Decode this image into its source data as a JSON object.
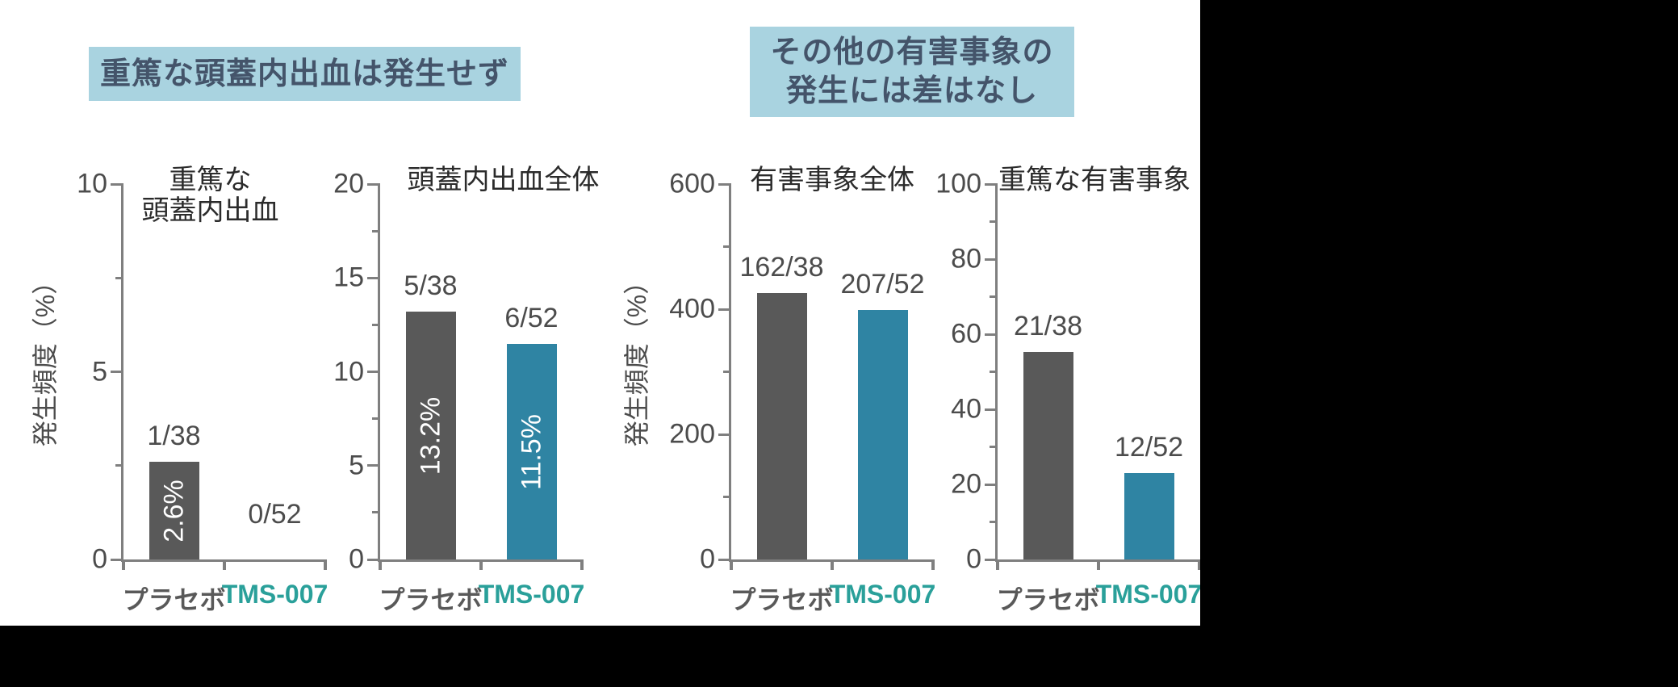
{
  "colors": {
    "background": "#000000",
    "content_bg": "#ffffff",
    "banner_bg": "#a9d3e0",
    "banner_text": "#44546a",
    "axis": "#7f7f7f",
    "tick_text": "#4c4c4c",
    "count_text": "#4c4c4c",
    "title_text": "#2b2b2b",
    "bar_placebo": "#595959",
    "bar_treatment": "#2f84a3",
    "placebo_label": "#595959",
    "tms_label": "#2aa09a",
    "inside_label_text": "#ffffff"
  },
  "banners": [
    {
      "lines": [
        "重篤な頭蓋内出血は発生せず"
      ]
    },
    {
      "lines": [
        "その他の有害事象の",
        "発生には差はなし"
      ]
    }
  ],
  "chart_data": [
    {
      "type": "bar",
      "title_lines": [
        "重篤な",
        "頭蓋内出血"
      ],
      "ylabel": "発生頻度（%）",
      "ylim": [
        0,
        10
      ],
      "yticks": [
        0,
        5,
        10
      ],
      "yticks_minor": [
        2.5,
        7.5
      ],
      "categories": [
        "プラセボ",
        "TMS-007"
      ],
      "values": [
        2.6,
        0
      ],
      "count_labels": [
        "1/38",
        "0/52"
      ],
      "inside_labels": [
        "2.6%",
        ""
      ],
      "grid": false,
      "legend": "none"
    },
    {
      "type": "bar",
      "title_lines": [
        "頭蓋内出血全体"
      ],
      "ylabel": "発生頻度（%）",
      "ylim": [
        0,
        20
      ],
      "yticks": [
        0,
        5,
        10,
        15,
        20
      ],
      "yticks_minor": [
        2.5,
        7.5,
        12.5,
        17.5
      ],
      "categories": [
        "プラセボ",
        "TMS-007"
      ],
      "values": [
        13.2,
        11.5
      ],
      "count_labels": [
        "5/38",
        "6/52"
      ],
      "inside_labels": [
        "13.2%",
        "11.5%"
      ],
      "grid": false,
      "legend": "none"
    },
    {
      "type": "bar",
      "title_lines": [
        "有害事象全体"
      ],
      "ylabel": "発生頻度（%）",
      "ylim": [
        0,
        600
      ],
      "yticks": [
        0,
        200,
        400,
        600
      ],
      "yticks_minor": [
        100,
        300,
        500
      ],
      "categories": [
        "プラセボ",
        "TMS-007"
      ],
      "values": [
        426.3,
        398.1
      ],
      "count_labels": [
        "162/38",
        "207/52"
      ],
      "inside_labels": [
        "",
        ""
      ],
      "grid": false,
      "legend": "none"
    },
    {
      "type": "bar",
      "title_lines": [
        "重篤な有害事象"
      ],
      "ylabel": "発生頻度（%）",
      "ylim": [
        0,
        100
      ],
      "yticks": [
        0,
        20,
        40,
        60,
        80,
        100
      ],
      "yticks_minor": [
        10,
        30,
        50,
        70,
        90
      ],
      "categories": [
        "プラセボ",
        "TMS-007"
      ],
      "values": [
        55.3,
        23.1
      ],
      "count_labels": [
        "21/38",
        "12/52"
      ],
      "inside_labels": [
        "",
        ""
      ],
      "grid": false,
      "legend": "none"
    }
  ]
}
